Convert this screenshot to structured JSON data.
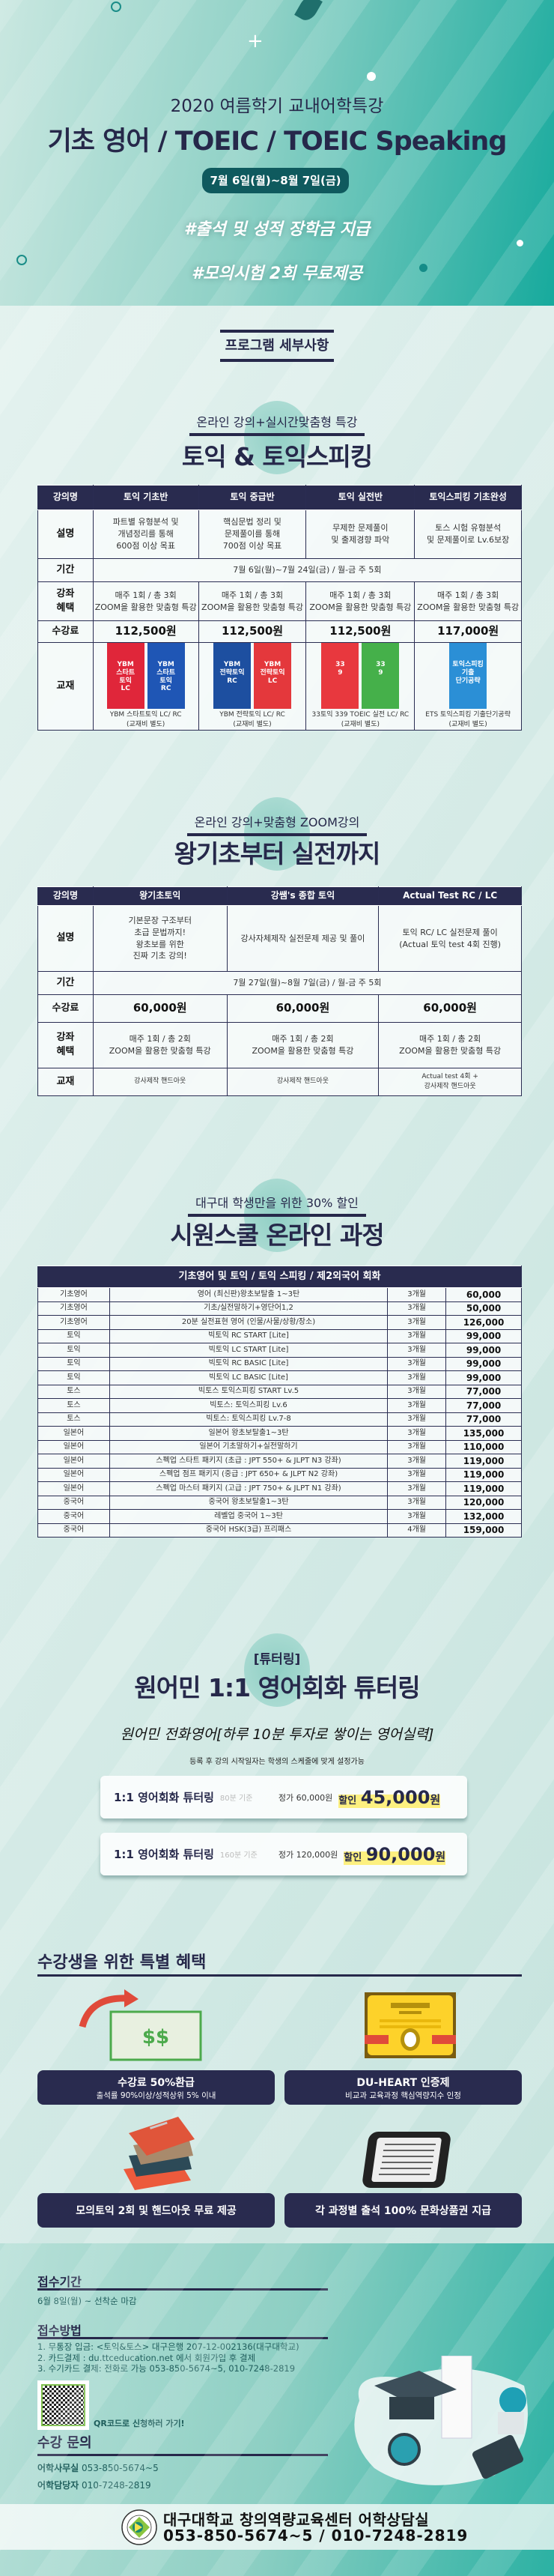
{
  "header": {
    "subtitle": "2020 여름학기 교내어학특강",
    "title": "기초 영어 / TOEIC / TOEIC Speaking",
    "period": "7월 6일(월)~8월 7일(금)",
    "hashtag1": "#출석 및 성적 장학금 지급",
    "hashtag2": "#모의시험 2회 무료제공"
  },
  "program_heading": "프로그램 세부사항",
  "section1": {
    "subtitle": "온라인 강의+실시간맞춤형 특강",
    "title": "토익 & 토익스피킹",
    "headers": [
      "강의명",
      "토익 기초반",
      "토익 중급반",
      "토익 실전반",
      "토익스피킹 기초완성"
    ],
    "row_labels": {
      "desc": "설명",
      "period": "기간",
      "benefit": "강좌\n혜택",
      "fee": "수강료",
      "book": "교재"
    },
    "desc": [
      "파트별 유형분석 및\n개념정리를 통해\n600점 이상 목표",
      "핵심문법 정리 및\n문제풀이를 통해\n700점 이상 목표",
      "무제한 문제풀이\n및 출제경향 파악",
      "토스 시험 유형분석\n및 문제풀이로 Lv.6보장"
    ],
    "period": "7월 6일(월)~7월 24일(금) / 월-금  주 5회",
    "benefit": [
      "매주 1회 / 총 3회\nZOOM을 활용한 맞춤형 특강",
      "매주 1회 / 총 3회\nZOOM을 활용한 맞춤형 특강",
      "매주 1회 / 총 3회\nZOOM을 활용한 맞춤형 특강",
      "매주 1회 / 총 3회\nZOOM을 활용한 맞춤형 특강"
    ],
    "fee": [
      "112,500원",
      "112,500원",
      "112,500원",
      "117,000원"
    ],
    "books": [
      {
        "covers": [
          {
            "text": "YBM\n스타트\n토익\nLC",
            "color": "#e0263a"
          },
          {
            "text": "YBM\n스타트\n토익\nRC",
            "color": "#1f56b5"
          }
        ],
        "caption": "YBM 스타트토익 LC/ RC\n(교재비 별도)"
      },
      {
        "covers": [
          {
            "text": "YBM\n전략토익\nRC",
            "color": "#1d4fa0"
          },
          {
            "text": "YBM\n전략토익\nLC",
            "color": "#e4383c"
          }
        ],
        "caption": "YBM 전략토익 LC/ RC\n(교재비 별도)"
      },
      {
        "covers": [
          {
            "text": "33\n9",
            "color": "#e8383e"
          },
          {
            "text": "33\n9",
            "color": "#45b04a"
          }
        ],
        "caption": "33토익 339 TOEIC 실전 LC/ RC\n(교재비 별도)"
      },
      {
        "covers": [
          {
            "text": "토익스피킹\n기출\n단기공략",
            "color": "#2b8fd6"
          }
        ],
        "caption": "ETS 토익스피킹 기출단기공략\n(교재비 별도)"
      }
    ]
  },
  "section2": {
    "subtitle": "온라인 강의+맞춤형 ZOOM강의",
    "title": "왕기초부터 실전까지",
    "headers": [
      "강의명",
      "왕기초토익",
      "강쌤's 종합 토익",
      "Actual Test RC / LC"
    ],
    "row_labels": {
      "desc": "설명",
      "period": "기간",
      "fee": "수강료",
      "benefit": "강좌\n혜택",
      "book": "교재"
    },
    "desc": [
      "기본문장 구조부터\n초급 문법까지!\n왕초보를 위한\n진짜 기초 강의!",
      "강사자체제작 실전문제 제공 및 풀이",
      "토익 RC/ LC 실전문제 풀이\n(Actual 토익 test 4회 진행)"
    ],
    "period": "7월 27일(월)~8월 7일(금) / 월-금  주 5회",
    "fee": [
      "60,000원",
      "60,000원",
      "60,000원"
    ],
    "benefit": [
      "매주 1회 / 총 2회\nZOOM을 활용한 맞춤형 특강",
      "매주 1회 / 총 2회\nZOOM을 활용한 맞춤형 특강",
      "매주 1회 / 총 2회\nZOOM을 활용한 맞춤형 특강"
    ],
    "book": [
      "강사제작 핸드아웃",
      "강사제작 핸드아웃",
      "Actual test 4회 +\n강사제작 핸드아웃"
    ]
  },
  "section3": {
    "subtitle": "대구대 학생만을 위한 30% 할인",
    "title": "시원스쿨 온라인 과정",
    "table_header": "기초영어 및 토익 / 토익 스피킹 / 제2외국어 회화",
    "rows": [
      [
        "기초영어",
        "영어 (최신판)왕초보탈출 1~3탄",
        "3개월",
        "60,000"
      ],
      [
        "기초영어",
        "기초/실전말하기+영단어1,2",
        "3개월",
        "50,000"
      ],
      [
        "기초영어",
        "20분 실전표현 영어 (인물/사물/상황/장소)",
        "3개월",
        "126,000"
      ],
      [
        "토익",
        "빅토익 RC START [Lite]",
        "3개월",
        "99,000"
      ],
      [
        "토익",
        "빅토익 LC START [Lite]",
        "3개월",
        "99,000"
      ],
      [
        "토익",
        "빅토익 RC BASIC [Lite]",
        "3개월",
        "99,000"
      ],
      [
        "토익",
        "빅토익 LC BASIC [Lite]",
        "3개월",
        "99,000"
      ],
      [
        "토스",
        "빅토스 토익스피킹 START Lv.5",
        "3개월",
        "77,000"
      ],
      [
        "토스",
        "빅토스: 토익스피킹 Lv.6",
        "3개월",
        "77,000"
      ],
      [
        "토스",
        "빅토스: 토익스피킹 Lv.7-8",
        "3개월",
        "77,000"
      ],
      [
        "일본어",
        "일본어 왕초보탈출1~3탄",
        "3개월",
        "135,000"
      ],
      [
        "일본어",
        "일본어 기초말하기+실전말하기",
        "3개월",
        "110,000"
      ],
      [
        "일본어",
        "스펙업 스타트 패키지 (초급 : JPT 550+ & JLPT N3 강좌)",
        "3개월",
        "119,000"
      ],
      [
        "일본어",
        "스펙업 점프 패키지 (중급 : JPT 650+ & JLPT N2 강좌)",
        "3개월",
        "119,000"
      ],
      [
        "일본어",
        "스펙업 마스터 패키지 (고급 : JPT 750+ & JLPT N1 강좌)",
        "3개월",
        "119,000"
      ],
      [
        "중국어",
        "중국어 왕초보탈출1~3탄",
        "3개월",
        "120,000"
      ],
      [
        "중국어",
        "레벨업 중국어 1~3탄",
        "3개월",
        "132,000"
      ],
      [
        "중국어",
        "중국어 HSK(3급) 프리패스",
        "4개월",
        "159,000"
      ]
    ]
  },
  "tutoring": {
    "tag": "[튜터링]",
    "title": "원어민 1:1 영어회화 튜터링",
    "tagline": "원어민 전화영어[하루 10분 투자로 쌓이는 영어실력]",
    "note": "등록 후 강의 시작일자는 학생의 스케줄에 맞게 설정가능",
    "cards": [
      {
        "name": "1:1 영어회화 튜터링",
        "basis": "80분 기준",
        "regular": "정가 60,000원",
        "discount_label": "할인",
        "discount_value": "45,000",
        "unit": "원"
      },
      {
        "name": "1:1 영어회화 튜터링",
        "basis": "160분 기준",
        "regular": "정가 120,000원",
        "discount_label": "할인",
        "discount_value": "90,000",
        "unit": "원"
      }
    ]
  },
  "benefits": {
    "heading": "수강생을 위한 특별 혜택",
    "money_icon_text": "$$",
    "items": [
      {
        "title": "수강료 50%환급",
        "sub": "출석률 90%이상/성적상위 5% 이내",
        "icon": "money-refund-icon"
      },
      {
        "title": "DU-HEART 인증제",
        "sub": "비교과 교육과정 핵심역량지수 인정",
        "icon": "certificate-icon"
      },
      {
        "title": "모의토익 2회 및 핸드아웃 무료 제공",
        "icon": "books-icon"
      },
      {
        "title": "각 과정별 출석 100% 문화상품권 지급",
        "icon": "tablet-icon"
      }
    ]
  },
  "footer": {
    "period_heading": "접수기간",
    "period_text": "6월 8일(월) ~ 선착순 마감",
    "method_heading": "접수방법",
    "methods": [
      "1. 무통장 입금: <토익&토스> 대구은행 207-12-002136(대구대학교)",
      "2. 카드결제 : du.ttceducation.net 에서 회원가입 후 결제",
      "3. 수기카드 결제: 전화로 가능 053-850-5674~5, 010-7248-2819"
    ],
    "qr_label": "QR코드로 신청하러 가기!",
    "contact_heading": "수강 문의",
    "contacts": [
      {
        "label": "어학사무실",
        "value": "053-850-5674~5"
      },
      {
        "label": "어학담당자",
        "value": "010-7248-2819"
      }
    ],
    "org_name": "대구대학교 창의역량교육센터 어학상담실",
    "org_phone": "053-850-5674~5 / 010-7248-2819",
    "logo_text": "대구대학교 DAEGU UNIVERSITY 1956"
  },
  "colors": {
    "navy": "#292b4f",
    "teal": "#17aa9d",
    "pill": "#0f5a5e",
    "highlight": "#fdf080"
  }
}
